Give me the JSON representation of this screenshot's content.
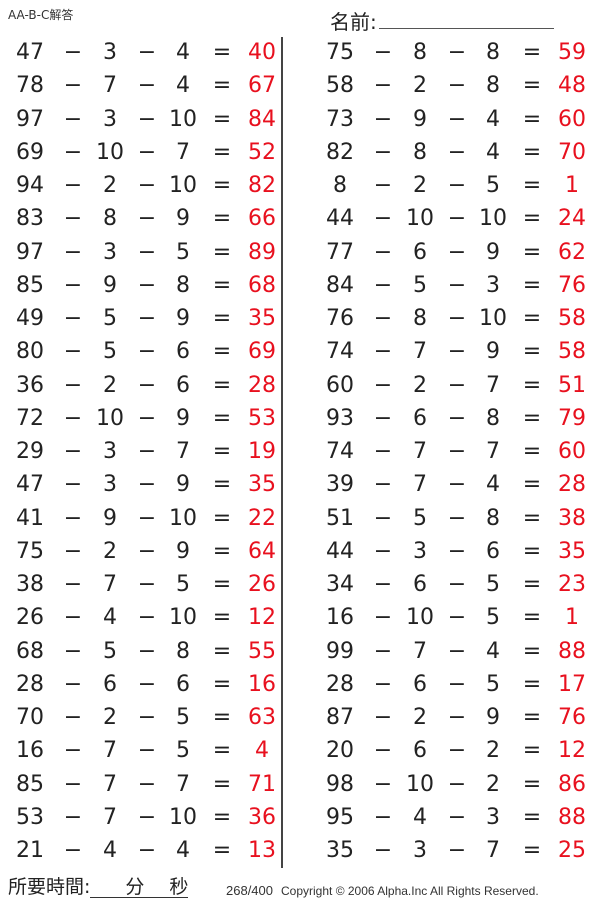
{
  "header": {
    "title": "AA-B-C解答",
    "name_label": "名前:"
  },
  "operator": "−",
  "equals": "=",
  "left": [
    [
      47,
      3,
      4,
      40
    ],
    [
      78,
      7,
      4,
      67
    ],
    [
      97,
      3,
      10,
      84
    ],
    [
      69,
      10,
      7,
      52
    ],
    [
      94,
      2,
      10,
      82
    ],
    [
      83,
      8,
      9,
      66
    ],
    [
      97,
      3,
      5,
      89
    ],
    [
      85,
      9,
      8,
      68
    ],
    [
      49,
      5,
      9,
      35
    ],
    [
      80,
      5,
      6,
      69
    ],
    [
      36,
      2,
      6,
      28
    ],
    [
      72,
      10,
      9,
      53
    ],
    [
      29,
      3,
      7,
      19
    ],
    [
      47,
      3,
      9,
      35
    ],
    [
      41,
      9,
      10,
      22
    ],
    [
      75,
      2,
      9,
      64
    ],
    [
      38,
      7,
      5,
      26
    ],
    [
      26,
      4,
      10,
      12
    ],
    [
      68,
      5,
      8,
      55
    ],
    [
      28,
      6,
      6,
      16
    ],
    [
      70,
      2,
      5,
      63
    ],
    [
      16,
      7,
      5,
      4
    ],
    [
      85,
      7,
      7,
      71
    ],
    [
      53,
      7,
      10,
      36
    ],
    [
      21,
      4,
      4,
      13
    ]
  ],
  "right": [
    [
      75,
      8,
      8,
      59
    ],
    [
      58,
      2,
      8,
      48
    ],
    [
      73,
      9,
      4,
      60
    ],
    [
      82,
      8,
      4,
      70
    ],
    [
      8,
      2,
      5,
      1
    ],
    [
      44,
      10,
      10,
      24
    ],
    [
      77,
      6,
      9,
      62
    ],
    [
      84,
      5,
      3,
      76
    ],
    [
      76,
      8,
      10,
      58
    ],
    [
      74,
      7,
      9,
      58
    ],
    [
      60,
      2,
      7,
      51
    ],
    [
      93,
      6,
      8,
      79
    ],
    [
      74,
      7,
      7,
      60
    ],
    [
      39,
      7,
      4,
      28
    ],
    [
      51,
      5,
      8,
      38
    ],
    [
      44,
      3,
      6,
      35
    ],
    [
      34,
      6,
      5,
      23
    ],
    [
      16,
      10,
      5,
      1
    ],
    [
      99,
      7,
      4,
      88
    ],
    [
      28,
      6,
      5,
      17
    ],
    [
      87,
      2,
      9,
      76
    ],
    [
      20,
      6,
      2,
      12
    ],
    [
      98,
      10,
      2,
      86
    ],
    [
      95,
      4,
      3,
      88
    ],
    [
      35,
      3,
      7,
      25
    ]
  ],
  "colors": {
    "answer": "#e8101e",
    "text": "#222222"
  },
  "footer": {
    "time_label": "所要時間:",
    "minutes_label": "分",
    "seconds_label": "秒",
    "page": "268/400",
    "copyright": "Copyright © 2006 Alpha.Inc All Rights Reserved."
  }
}
